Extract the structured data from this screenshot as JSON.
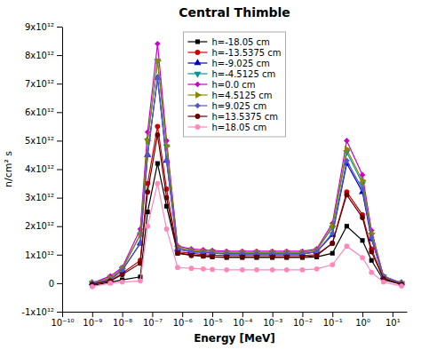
{
  "chart_data": {
    "type": "line",
    "title": "Central Thimble",
    "xlabel": "Energy [MeV]",
    "ylabel": "n/cm² s",
    "log": "x",
    "grid": false,
    "legend": "upper center",
    "x": [
      1e-09,
      4e-09,
      1e-08,
      4e-08,
      7e-08,
      1.5e-07,
      3e-07,
      7e-07,
      2e-06,
      5e-06,
      1e-05,
      3e-05,
      0.0001,
      0.0003,
      0.001,
      0.003,
      0.01,
      0.03,
      0.1,
      0.3,
      1.0,
      2.0,
      5.0,
      20.0
    ],
    "xlim": [
      1e-10,
      30.0
    ],
    "xticks": [
      {
        "value": 1e-10,
        "label": "10⁻¹⁰"
      },
      {
        "value": 1e-09,
        "label": "10⁻⁹"
      },
      {
        "value": 1e-08,
        "label": "10⁻⁸"
      },
      {
        "value": 1e-07,
        "label": "10⁻⁷"
      },
      {
        "value": 1e-06,
        "label": "10⁻⁶"
      },
      {
        "value": 1e-05,
        "label": "10⁻⁵"
      },
      {
        "value": 0.0001,
        "label": "10⁻⁴"
      },
      {
        "value": 0.001,
        "label": "10⁻³"
      },
      {
        "value": 0.01,
        "label": "10⁻²"
      },
      {
        "value": 0.1,
        "label": "10⁻¹"
      },
      {
        "value": 1,
        "label": "10⁰"
      },
      {
        "value": 10,
        "label": "10¹"
      }
    ],
    "ylim": [
      -1000000000000.0,
      9000000000000.0
    ],
    "yticks": [
      {
        "value": -1000000000000.0,
        "label": "-1x10¹²"
      },
      0,
      {
        "value": 1000000000000.0,
        "label": "1x10¹²"
      },
      {
        "value": 2000000000000.0,
        "label": "2x10¹²"
      },
      {
        "value": 3000000000000.0,
        "label": "3x10¹²"
      },
      {
        "value": 4000000000000.0,
        "label": "4x10¹²"
      },
      {
        "value": 5000000000000.0,
        "label": "5x10¹²"
      },
      {
        "value": 6000000000000.0,
        "label": "6x10¹²"
      },
      {
        "value": 7000000000000.0,
        "label": "7x10¹²"
      },
      {
        "value": 8000000000000.0,
        "label": "8x10¹²"
      },
      {
        "value": 9000000000000.0,
        "label": "9x10¹²"
      }
    ],
    "series": [
      {
        "name": "h=-18.05 cm",
        "color": "#000000",
        "marker": "square",
        "values": [
          -80000000000.0,
          30000000000.0,
          120000000000.0,
          220000000000.0,
          2500000000000.0,
          4200000000000.0,
          2700000000000.0,
          1050000000000.0,
          1000000000000.0,
          950000000000.0,
          920000000000.0,
          900000000000.0,
          900000000000.0,
          900000000000.0,
          900000000000.0,
          900000000000.0,
          900000000000.0,
          920000000000.0,
          1050000000000.0,
          2000000000000.0,
          1500000000000.0,
          800000000000.0,
          120000000000.0,
          -40000000000.0
        ]
      },
      {
        "name": "h=-13.5375 cm",
        "color": "#cc0000",
        "marker": "circle",
        "values": [
          -40000000000.0,
          80000000000.0,
          350000000000.0,
          800000000000.0,
          3500000000000.0,
          5500000000000.0,
          3300000000000.0,
          1100000000000.0,
          1050000000000.0,
          1000000000000.0,
          980000000000.0,
          970000000000.0,
          970000000000.0,
          970000000000.0,
          970000000000.0,
          970000000000.0,
          970000000000.0,
          1000000000000.0,
          1400000000000.0,
          3200000000000.0,
          2400000000000.0,
          1200000000000.0,
          180000000000.0,
          -40000000000.0
        ]
      },
      {
        "name": "h=-9.025 cm",
        "color": "#0000cc",
        "marker": "triangle-up",
        "values": [
          0.0,
          120000000000.0,
          450000000000.0,
          1400000000000.0,
          4500000000000.0,
          7200000000000.0,
          4300000000000.0,
          1200000000000.0,
          1100000000000.0,
          1080000000000.0,
          1050000000000.0,
          1030000000000.0,
          1030000000000.0,
          1030000000000.0,
          1030000000000.0,
          1030000000000.0,
          1030000000000.0,
          1100000000000.0,
          1700000000000.0,
          4200000000000.0,
          3200000000000.0,
          1550000000000.0,
          220000000000.0,
          0.0
        ]
      },
      {
        "name": "h=-4.5125 cm",
        "color": "#009999",
        "marker": "triangle-down",
        "values": [
          0.0,
          180000000000.0,
          500000000000.0,
          1700000000000.0,
          5000000000000.0,
          7800000000000.0,
          4800000000000.0,
          1250000000000.0,
          1150000000000.0,
          1120000000000.0,
          1100000000000.0,
          1080000000000.0,
          1080000000000.0,
          1080000000000.0,
          1080000000000.0,
          1080000000000.0,
          1080000000000.0,
          1150000000000.0,
          1950000000000.0,
          4600000000000.0,
          3500000000000.0,
          1700000000000.0,
          240000000000.0,
          0.0
        ]
      },
      {
        "name": "h=0.0 cm",
        "color": "#cc00cc",
        "marker": "diamond",
        "values": [
          0.0,
          250000000000.0,
          550000000000.0,
          1900000000000.0,
          5300000000000.0,
          8400000000000.0,
          5000000000000.0,
          1300000000000.0,
          1200000000000.0,
          1170000000000.0,
          1150000000000.0,
          1120000000000.0,
          1120000000000.0,
          1120000000000.0,
          1120000000000.0,
          1120000000000.0,
          1120000000000.0,
          1200000000000.0,
          2100000000000.0,
          5000000000000.0,
          3800000000000.0,
          1850000000000.0,
          250000000000.0,
          0.0
        ]
      },
      {
        "name": "h=4.5125 cm",
        "color": "#888800",
        "marker": "triangle-right",
        "values": [
          0.0,
          180000000000.0,
          500000000000.0,
          1700000000000.0,
          5000000000000.0,
          7800000000000.0,
          4800000000000.0,
          1250000000000.0,
          1150000000000.0,
          1120000000000.0,
          1100000000000.0,
          1080000000000.0,
          1080000000000.0,
          1080000000000.0,
          1080000000000.0,
          1080000000000.0,
          1080000000000.0,
          1150000000000.0,
          2000000000000.0,
          4700000000000.0,
          3600000000000.0,
          1750000000000.0,
          240000000000.0,
          0.0
        ]
      },
      {
        "name": "h=9.025 cm",
        "color": "#5555cc",
        "marker": "diamond",
        "values": [
          0.0,
          120000000000.0,
          450000000000.0,
          1400000000000.0,
          4500000000000.0,
          7200000000000.0,
          4300000000000.0,
          1200000000000.0,
          1100000000000.0,
          1080000000000.0,
          1050000000000.0,
          1030000000000.0,
          1030000000000.0,
          1030000000000.0,
          1030000000000.0,
          1030000000000.0,
          1030000000000.0,
          1100000000000.0,
          1750000000000.0,
          4300000000000.0,
          3300000000000.0,
          1600000000000.0,
          220000000000.0,
          0.0
        ]
      },
      {
        "name": "h=13.5375 cm",
        "color": "#660000",
        "marker": "circle",
        "values": [
          -40000000000.0,
          80000000000.0,
          300000000000.0,
          700000000000.0,
          3200000000000.0,
          5200000000000.0,
          3000000000000.0,
          1050000000000.0,
          970000000000.0,
          950000000000.0,
          930000000000.0,
          920000000000.0,
          920000000000.0,
          920000000000.0,
          920000000000.0,
          920000000000.0,
          920000000000.0,
          970000000000.0,
          1400000000000.0,
          3100000000000.0,
          2300000000000.0,
          1100000000000.0,
          160000000000.0,
          -40000000000.0
        ]
      },
      {
        "name": "h=18.05 cm",
        "color": "#ff88bb",
        "marker": "circle",
        "values": [
          -120000000000.0,
          0.0,
          40000000000.0,
          80000000000.0,
          2000000000000.0,
          3500000000000.0,
          1900000000000.0,
          550000000000.0,
          520000000000.0,
          500000000000.0,
          480000000000.0,
          470000000000.0,
          470000000000.0,
          470000000000.0,
          470000000000.0,
          470000000000.0,
          470000000000.0,
          500000000000.0,
          650000000000.0,
          1300000000000.0,
          900000000000.0,
          380000000000.0,
          40000000000.0,
          -100000000000.0
        ]
      }
    ]
  }
}
